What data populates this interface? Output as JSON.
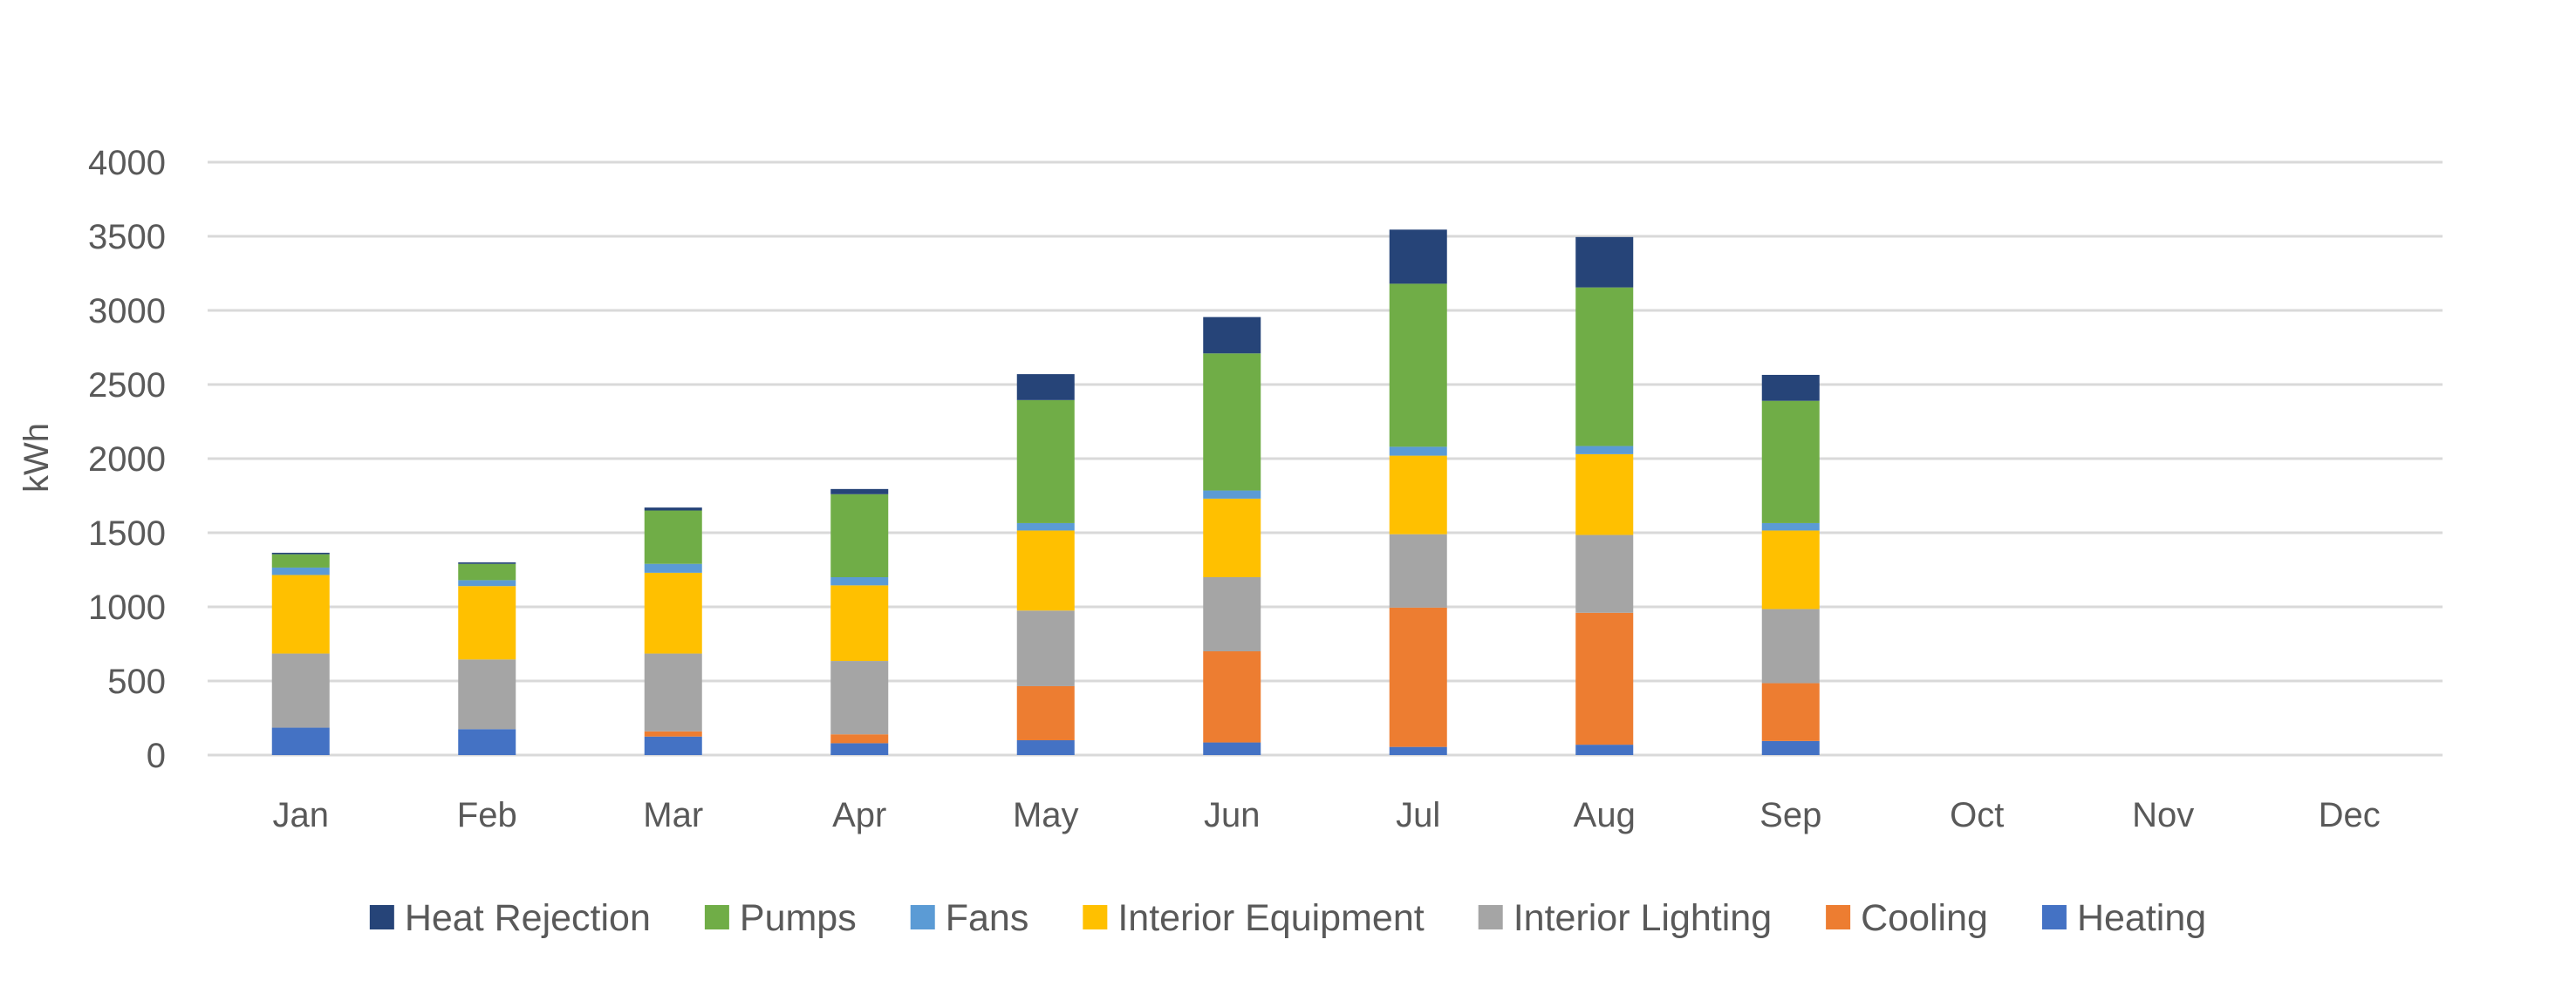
{
  "chart_data": {
    "type": "bar",
    "stacked": true,
    "title": "",
    "xlabel": "",
    "ylabel": "kWh",
    "ylim": [
      0,
      4000
    ],
    "yticks": [
      0,
      500,
      1000,
      1500,
      2000,
      2500,
      3000,
      3500,
      4000
    ],
    "grid": true,
    "legend_position": "bottom",
    "categories": [
      "Jan",
      "Feb",
      "Mar",
      "Apr",
      "May",
      "Jun",
      "Jul",
      "Aug",
      "Sep",
      "Oct",
      "Nov",
      "Dec"
    ],
    "series": [
      {
        "name": "Heating",
        "color": "#4472C4",
        "values": [
          185,
          175,
          125,
          80,
          100,
          85,
          55,
          70,
          95,
          0,
          0,
          0
        ]
      },
      {
        "name": "Cooling",
        "color": "#ED7D31",
        "values": [
          0,
          0,
          35,
          60,
          365,
          615,
          940,
          890,
          390,
          0,
          0,
          0
        ]
      },
      {
        "name": "Interior Lighting",
        "color": "#A5A5A5",
        "values": [
          500,
          470,
          525,
          495,
          510,
          500,
          495,
          525,
          500,
          0,
          0,
          0
        ]
      },
      {
        "name": "Interior Equipment",
        "color": "#FFC000",
        "values": [
          530,
          495,
          545,
          510,
          540,
          530,
          530,
          545,
          530,
          0,
          0,
          0
        ]
      },
      {
        "name": "Fans",
        "color": "#5B9BD5",
        "values": [
          50,
          40,
          60,
          55,
          50,
          55,
          60,
          55,
          50,
          0,
          0,
          0
        ]
      },
      {
        "name": "Pumps",
        "color": "#70AD47",
        "values": [
          90,
          110,
          360,
          560,
          830,
          925,
          1100,
          1070,
          825,
          0,
          0,
          0
        ]
      },
      {
        "name": "Heat Rejection",
        "color": "#264478",
        "values": [
          10,
          10,
          20,
          35,
          175,
          245,
          365,
          340,
          175,
          0,
          0,
          0
        ]
      }
    ],
    "legend_order": [
      "Heat Rejection",
      "Pumps",
      "Fans",
      "Interior Equipment",
      "Interior Lighting",
      "Cooling",
      "Heating"
    ]
  }
}
